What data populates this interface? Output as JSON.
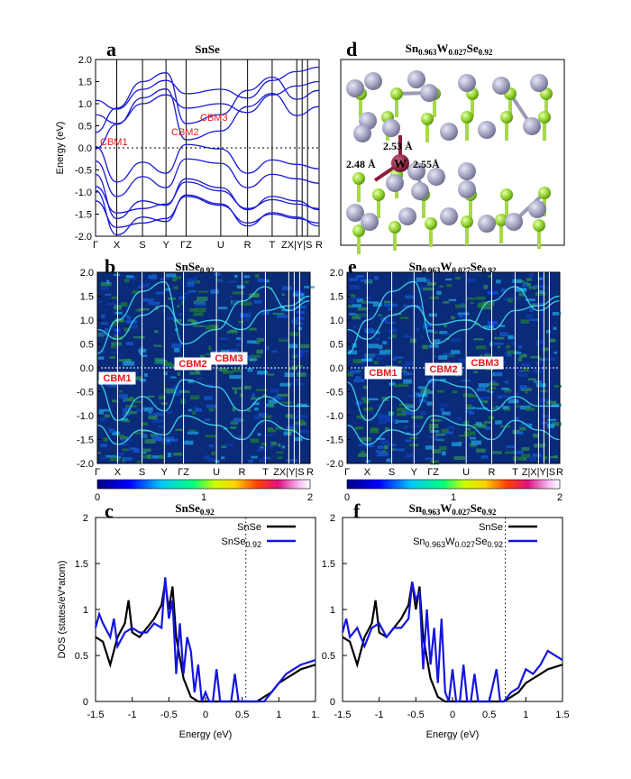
{
  "chart_data": [
    {
      "panel": "a",
      "type": "line",
      "title": "SnSe",
      "ylabel": "Energy (eV)",
      "ylim": [
        -2.0,
        2.0
      ],
      "yticks": [
        "2.0",
        "1.5",
        "1.0",
        "0.5",
        "0.0",
        "-0.5",
        "-1.0",
        "-1.5",
        "-2.0"
      ],
      "kpoints": [
        "Γ",
        "X",
        "S",
        "Y",
        "ΓZ",
        "U",
        "R",
        "T",
        "ZX|Y|S",
        "R"
      ],
      "fermi_level": 0.0,
      "annotations": [
        "CBM1",
        "CBM2",
        "CBM3"
      ],
      "series": [
        {
          "values": [
            0.75,
            0.55,
            1.0,
            1.2,
            0.9,
            1.0,
            0.8,
            1.2,
            1.4,
            1.5
          ]
        },
        {
          "values": [
            0.35,
            0.9,
            1.5,
            1.7,
            0.55,
            0.75,
            1.3,
            1.6,
            1.1,
            1.3
          ]
        },
        {
          "values": [
            -0.3,
            -1.1,
            -0.65,
            -0.9,
            -0.25,
            -0.35,
            -0.9,
            -0.6,
            -0.7,
            -0.8
          ]
        },
        {
          "values": [
            -0.6,
            -1.6,
            -1.2,
            -1.3,
            -0.7,
            -0.9,
            -1.4,
            -1.1,
            -1.2,
            -1.4
          ]
        },
        {
          "values": [
            -1.2,
            -1.8,
            -1.7,
            -1.6,
            -1.1,
            -1.3,
            -1.7,
            -1.5,
            -1.6,
            -1.7
          ]
        }
      ]
    },
    {
      "panel": "b",
      "type": "heatmap",
      "title": "SnSe0.92",
      "ylim": [
        -2.0,
        2.0
      ],
      "yticks": [
        "2.0",
        "1.5",
        "1.0",
        "0.5",
        "0.0",
        "-0.5",
        "-1.0",
        "-1.5",
        "-2.0"
      ],
      "kpoints": [
        "Γ",
        "X",
        "S",
        "Y",
        "ΓZ",
        "U",
        "R",
        "T",
        "ZX|Y|S",
        "R"
      ],
      "annotations": [
        "CBM1",
        "CBM2",
        "CBM3"
      ],
      "colorbar_ticks": [
        "0",
        "1",
        "2"
      ]
    },
    {
      "panel": "c",
      "type": "line",
      "title": "SnSe0.92",
      "xlabel": "Energy (eV)",
      "ylabel": "DOS (states/eV*atom)",
      "xlim": [
        -1.5,
        1.5
      ],
      "ylim": [
        0,
        2
      ],
      "xticks": [
        "-1.5",
        "-1",
        "-0.5",
        "0",
        "0.5",
        "1",
        "1."
      ],
      "yticks": [
        "2",
        "1.5",
        "1",
        "0.5",
        "0"
      ],
      "vline_x": 0.55,
      "series": [
        {
          "name": "SnSe",
          "color": "#000000",
          "x": [
            -1.5,
            -1.4,
            -1.3,
            -1.2,
            -1.1,
            -1.05,
            -1.0,
            -0.9,
            -0.8,
            -0.7,
            -0.6,
            -0.55,
            -0.5,
            -0.45,
            -0.4,
            -0.3,
            -0.2,
            -0.1,
            0.0,
            0.1,
            0.2,
            0.4,
            0.6,
            0.7,
            0.8,
            0.9,
            1.0,
            1.1,
            1.2,
            1.3,
            1.5
          ],
          "y": [
            0.7,
            0.65,
            0.4,
            0.7,
            0.85,
            1.1,
            0.75,
            0.7,
            0.8,
            0.9,
            1.05,
            1.3,
            1.0,
            1.25,
            0.7,
            0.25,
            0.05,
            0.0,
            0.0,
            0.0,
            0.0,
            0.0,
            0.0,
            0.0,
            0.05,
            0.1,
            0.2,
            0.25,
            0.3,
            0.35,
            0.4
          ]
        },
        {
          "name": "SnSe0.92",
          "color": "#1515e0",
          "x": [
            -1.5,
            -1.45,
            -1.4,
            -1.3,
            -1.25,
            -1.2,
            -1.1,
            -1.0,
            -0.9,
            -0.8,
            -0.7,
            -0.6,
            -0.55,
            -0.5,
            -0.45,
            -0.4,
            -0.35,
            -0.3,
            -0.25,
            -0.2,
            -0.15,
            -0.1,
            -0.05,
            0.0,
            0.05,
            0.1,
            0.15,
            0.2,
            0.25,
            0.35,
            0.4,
            0.45,
            0.5,
            0.6,
            0.7,
            0.8,
            0.9,
            1.0,
            1.1,
            1.2,
            1.3,
            1.5
          ],
          "y": [
            0.8,
            0.95,
            0.85,
            0.7,
            0.9,
            0.6,
            0.75,
            0.8,
            0.75,
            0.75,
            0.85,
            0.8,
            1.35,
            0.9,
            1.1,
            0.3,
            0.85,
            0.3,
            0.7,
            0.55,
            0.1,
            0.4,
            0.0,
            0.1,
            0.0,
            0.0,
            0.35,
            0.0,
            0.0,
            0.0,
            0.3,
            0.0,
            0.0,
            0.0,
            0.0,
            0.0,
            0.1,
            0.2,
            0.3,
            0.35,
            0.4,
            0.45
          ]
        }
      ]
    },
    {
      "panel": "d",
      "type": "structure",
      "title": "Sn0.963W0.027Se0.92",
      "bond_labels": [
        "2.53 Å",
        "2.48 Å",
        "2.55Å"
      ],
      "atom_label": "W",
      "colors": {
        "sn": "#a9a9c6",
        "se": "#8fd12b",
        "w": "#8b1c3a"
      }
    },
    {
      "panel": "e",
      "type": "heatmap",
      "title": "Sn0.963W0.027Se0.92",
      "ylim": [
        -2.0,
        2.0
      ],
      "yticks": [
        "2.0",
        "1.5",
        "1.0",
        "0.5",
        "0.0",
        "-0.5",
        "-1.0",
        "-1.5",
        "-2.0"
      ],
      "kpoints": [
        "Γ",
        "X",
        "S",
        "Y",
        "ΓZ",
        "U",
        "R",
        "T",
        "Z|X|Y|S",
        "R"
      ],
      "annotations": [
        "CBM1",
        "CBM2",
        "CBM3"
      ],
      "colorbar_ticks": [
        "0",
        "1",
        "2"
      ]
    },
    {
      "panel": "f",
      "type": "line",
      "title": "Sn0.963W0.027Se0.92",
      "xlabel": "Energy (eV)",
      "xlim": [
        -1.5,
        1.5
      ],
      "ylim": [
        0,
        2
      ],
      "xticks": [
        "-1.5",
        "-1",
        "-0.5",
        "0",
        "0.5",
        "1",
        "1.5"
      ],
      "vline_x": 0.72,
      "series": [
        {
          "name": "SnSe",
          "color": "#000000",
          "x": [
            -1.5,
            -1.4,
            -1.3,
            -1.2,
            -1.1,
            -1.05,
            -1.0,
            -0.9,
            -0.8,
            -0.7,
            -0.6,
            -0.55,
            -0.5,
            -0.45,
            -0.4,
            -0.3,
            -0.2,
            -0.1,
            0.0,
            0.2,
            0.4,
            0.6,
            0.7,
            0.8,
            0.9,
            1.0,
            1.1,
            1.2,
            1.3,
            1.5
          ],
          "y": [
            0.7,
            0.65,
            0.4,
            0.7,
            0.85,
            1.1,
            0.75,
            0.7,
            0.8,
            0.9,
            1.05,
            1.3,
            1.0,
            1.25,
            0.7,
            0.25,
            0.05,
            0.0,
            0.0,
            0.0,
            0.0,
            0.0,
            0.0,
            0.05,
            0.1,
            0.2,
            0.25,
            0.3,
            0.35,
            0.4
          ]
        },
        {
          "name": "Sn0.963W0.027Se0.92",
          "color": "#1515e0",
          "x": [
            -1.5,
            -1.45,
            -1.4,
            -1.3,
            -1.2,
            -1.1,
            -1.0,
            -0.9,
            -0.8,
            -0.7,
            -0.6,
            -0.55,
            -0.5,
            -0.45,
            -0.4,
            -0.35,
            -0.3,
            -0.25,
            -0.2,
            -0.15,
            -0.1,
            -0.05,
            0.0,
            0.05,
            0.1,
            0.15,
            0.2,
            0.25,
            0.3,
            0.35,
            0.4,
            0.5,
            0.6,
            0.65,
            0.7,
            0.8,
            0.9,
            1.0,
            1.1,
            1.2,
            1.3,
            1.5
          ],
          "y": [
            0.75,
            0.9,
            0.7,
            0.8,
            0.6,
            0.8,
            0.85,
            0.7,
            0.8,
            0.8,
            0.9,
            1.3,
            1.1,
            1.2,
            0.35,
            1.0,
            0.4,
            0.8,
            0.2,
            0.9,
            0.1,
            0.0,
            0.35,
            0.0,
            0.0,
            0.4,
            0.0,
            0.0,
            0.3,
            0.0,
            0.0,
            0.0,
            0.35,
            0.0,
            0.0,
            0.1,
            0.15,
            0.35,
            0.3,
            0.4,
            0.55,
            0.45
          ]
        }
      ]
    }
  ]
}
